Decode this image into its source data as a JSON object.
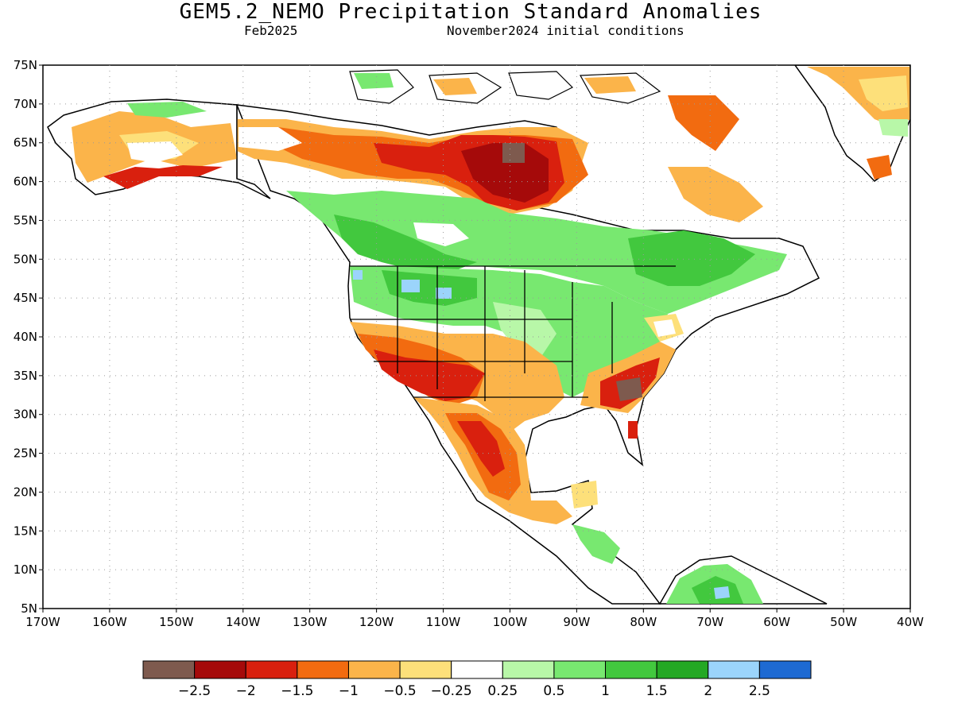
{
  "header": {
    "title": "GEM5.2_NEMO Precipitation Standard Anomalies",
    "month": "Feb2025",
    "init": "November2024 initial conditions"
  },
  "map": {
    "lon_range": [
      -170,
      -40
    ],
    "lat_range": [
      5,
      75
    ],
    "lat_labels": [
      "75N",
      "70N",
      "65N",
      "60N",
      "55N",
      "50N",
      "45N",
      "40N",
      "35N",
      "30N",
      "25N",
      "20N",
      "15N",
      "10N",
      "5N"
    ],
    "lon_labels": [
      "170W",
      "160W",
      "150W",
      "140W",
      "130W",
      "120W",
      "110W",
      "100W",
      "90W",
      "80W",
      "70W",
      "60W",
      "50W",
      "40W"
    ],
    "grid": true
  },
  "colorbar": {
    "colors": [
      "#7e5a4e",
      "#a50a0a",
      "#d9200e",
      "#f26b10",
      "#fbb44a",
      "#fde07a",
      "#ffffff",
      "#b8f7a8",
      "#78e870",
      "#42c83e",
      "#24a824",
      "#9bd4fb",
      "#1e6ad2"
    ],
    "labels": [
      "−2.5",
      "−2",
      "−1.5",
      "−1",
      "−0.5",
      "−0.25",
      "0.25",
      "0.5",
      "1",
      "1.5",
      "2",
      "2.5"
    ]
  }
}
